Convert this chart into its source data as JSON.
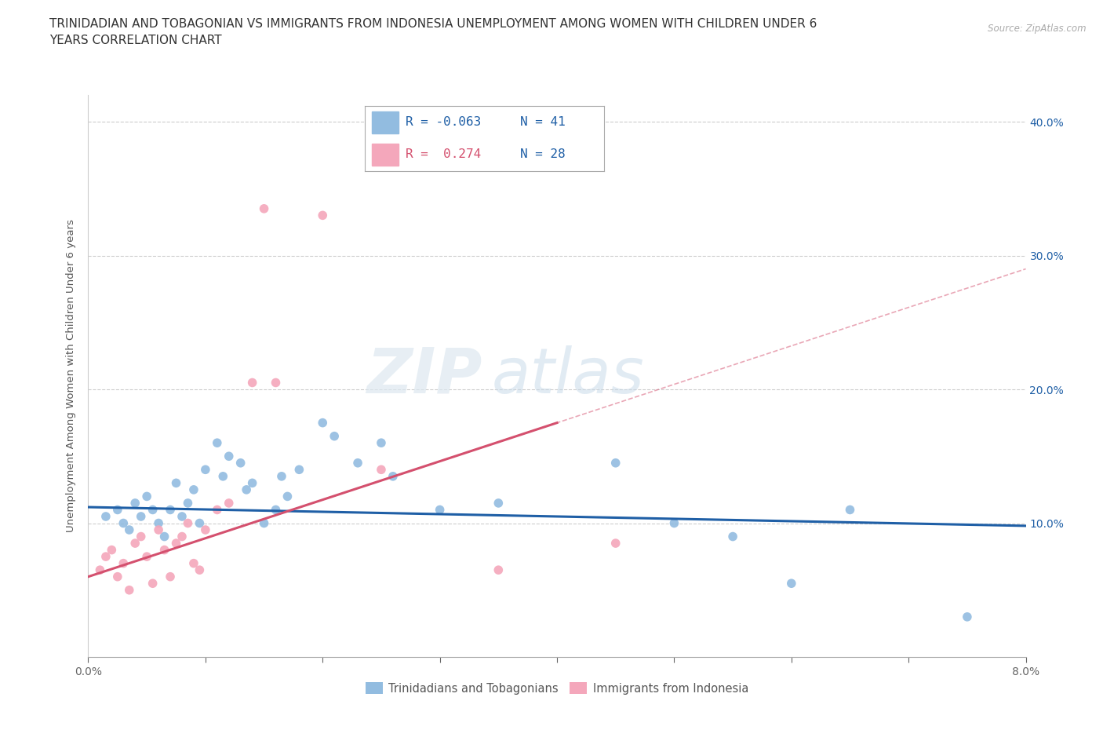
{
  "title": "TRINIDADIAN AND TOBAGONIAN VS IMMIGRANTS FROM INDONESIA UNEMPLOYMENT AMONG WOMEN WITH CHILDREN UNDER 6\nYEARS CORRELATION CHART",
  "source": "Source: ZipAtlas.com",
  "ylabel": "Unemployment Among Women with Children Under 6 years",
  "xlim": [
    0.0,
    8.0
  ],
  "ylim": [
    0.0,
    42.0
  ],
  "watermark_zip": "ZIP",
  "watermark_atlas": "atlas",
  "legend_r1": "R = -0.063",
  "legend_n1": "N = 41",
  "legend_r2": "R =  0.274",
  "legend_n2": "N = 28",
  "color_blue": "#92bce0",
  "color_pink": "#f4a7bb",
  "color_blue_line": "#1f5fa6",
  "color_pink_line": "#d4506e",
  "color_blue_text": "#1f5fa6",
  "color_pink_text": "#d4506e",
  "blue_scatter_x": [
    0.15,
    0.25,
    0.3,
    0.35,
    0.4,
    0.45,
    0.5,
    0.55,
    0.6,
    0.65,
    0.7,
    0.75,
    0.8,
    0.85,
    0.9,
    0.95,
    1.0,
    1.1,
    1.15,
    1.2,
    1.3,
    1.35,
    1.4,
    1.5,
    1.6,
    1.65,
    1.7,
    1.8,
    2.0,
    2.1,
    2.3,
    2.5,
    2.6,
    3.0,
    3.5,
    4.5,
    5.0,
    5.5,
    6.0,
    6.5,
    7.5
  ],
  "blue_scatter_y": [
    10.5,
    11.0,
    10.0,
    9.5,
    11.5,
    10.5,
    12.0,
    11.0,
    10.0,
    9.0,
    11.0,
    13.0,
    10.5,
    11.5,
    12.5,
    10.0,
    14.0,
    16.0,
    13.5,
    15.0,
    14.5,
    12.5,
    13.0,
    10.0,
    11.0,
    13.5,
    12.0,
    14.0,
    17.5,
    16.5,
    14.5,
    16.0,
    13.5,
    11.0,
    11.5,
    14.5,
    10.0,
    9.0,
    5.5,
    11.0,
    3.0
  ],
  "pink_scatter_x": [
    0.1,
    0.15,
    0.2,
    0.25,
    0.3,
    0.35,
    0.4,
    0.45,
    0.5,
    0.55,
    0.6,
    0.65,
    0.7,
    0.75,
    0.8,
    0.85,
    0.9,
    0.95,
    1.0,
    1.1,
    1.2,
    1.4,
    1.5,
    1.6,
    2.0,
    2.5,
    3.5,
    4.5
  ],
  "pink_scatter_y": [
    6.5,
    7.5,
    8.0,
    6.0,
    7.0,
    5.0,
    8.5,
    9.0,
    7.5,
    5.5,
    9.5,
    8.0,
    6.0,
    8.5,
    9.0,
    10.0,
    7.0,
    6.5,
    9.5,
    11.0,
    11.5,
    20.5,
    33.5,
    20.5,
    33.0,
    14.0,
    6.5,
    8.5
  ],
  "blue_line_x": [
    0.0,
    8.0
  ],
  "blue_line_y": [
    11.2,
    9.8
  ],
  "pink_solid_line_x": [
    0.0,
    4.0
  ],
  "pink_solid_line_y": [
    6.0,
    17.5
  ],
  "pink_dashed_line_x": [
    0.0,
    8.0
  ],
  "pink_dashed_line_y": [
    6.0,
    29.0
  ],
  "grid_color": "#cccccc",
  "bg_color": "#ffffff",
  "title_fontsize": 11,
  "axis_label_fontsize": 9.5,
  "tick_fontsize": 10
}
